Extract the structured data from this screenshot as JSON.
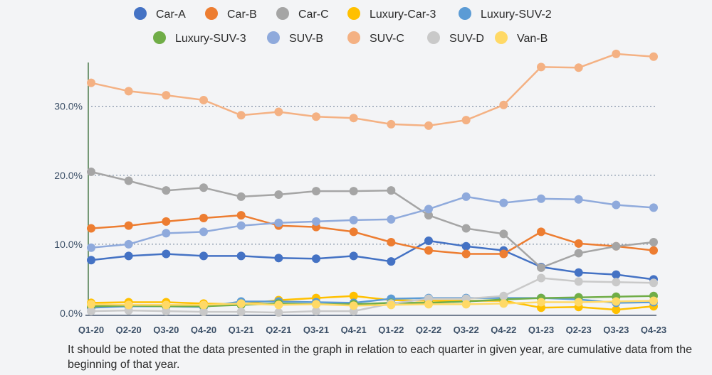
{
  "chart_data": {
    "type": "line",
    "title": "",
    "xlabel": "",
    "ylabel": "",
    "ylim": [
      0,
      0.38
    ],
    "y_ticks": [
      0,
      0.1,
      0.2,
      0.3
    ],
    "y_tick_labels": [
      "0.0%",
      "10.0%",
      "20.0%",
      "30.0%"
    ],
    "grid": "dotted horizontal at 10%, 20%, 30%",
    "legend_position": "top",
    "categories": [
      "Q1-20",
      "Q2-20",
      "Q3-20",
      "Q4-20",
      "Q1-21",
      "Q2-21",
      "Q3-21",
      "Q4-21",
      "Q1-22",
      "Q2-22",
      "Q3-22",
      "Q4-22",
      "Q1-23",
      "Q2-23",
      "Q3-23",
      "Q4-23"
    ],
    "series": [
      {
        "name": "Car-A",
        "color": "#4472c4",
        "values": [
          0.077,
          0.083,
          0.086,
          0.083,
          0.083,
          0.08,
          0.079,
          0.083,
          0.075,
          0.105,
          0.097,
          0.091,
          0.067,
          0.059,
          0.056,
          0.049
        ]
      },
      {
        "name": "Car-B",
        "color": "#ed7d31",
        "values": [
          0.123,
          0.127,
          0.133,
          0.138,
          0.142,
          0.127,
          0.125,
          0.118,
          0.103,
          0.091,
          0.086,
          0.086,
          0.118,
          0.101,
          0.097,
          0.091
        ]
      },
      {
        "name": "Car-C",
        "color": "#a5a5a5",
        "values": [
          0.205,
          0.192,
          0.178,
          0.182,
          0.169,
          0.172,
          0.177,
          0.177,
          0.178,
          0.142,
          0.123,
          0.115,
          0.066,
          0.087,
          0.097,
          0.103
        ]
      },
      {
        "name": "Luxury-Car-3",
        "color": "#ffc000",
        "values": [
          0.015,
          0.016,
          0.016,
          0.014,
          0.013,
          0.019,
          0.022,
          0.025,
          0.019,
          0.018,
          0.018,
          0.018,
          0.008,
          0.009,
          0.005,
          0.01
        ]
      },
      {
        "name": "Luxury-SUV-2",
        "color": "#5b9bd5",
        "values": [
          0.008,
          0.01,
          0.01,
          0.009,
          0.017,
          0.017,
          0.016,
          0.015,
          0.021,
          0.022,
          0.022,
          0.022,
          0.022,
          0.02,
          0.015,
          0.016
        ]
      },
      {
        "name": "Luxury-SUV-3",
        "color": "#70ad47",
        "values": [
          0.01,
          0.011,
          0.01,
          0.01,
          0.012,
          0.014,
          0.013,
          0.013,
          0.015,
          0.015,
          0.017,
          0.02,
          0.022,
          0.023,
          0.024,
          0.025
        ]
      },
      {
        "name": "SUV-B",
        "color": "#8faadc",
        "values": [
          0.095,
          0.1,
          0.116,
          0.118,
          0.127,
          0.131,
          0.133,
          0.135,
          0.136,
          0.151,
          0.169,
          0.16,
          0.166,
          0.165,
          0.157,
          0.153
        ]
      },
      {
        "name": "SUV-C",
        "color": "#f4b183",
        "values": [
          0.334,
          0.322,
          0.316,
          0.309,
          0.287,
          0.292,
          0.285,
          0.283,
          0.274,
          0.272,
          0.28,
          0.302,
          0.357,
          0.356,
          0.376,
          0.372
        ]
      },
      {
        "name": "SUV-D",
        "color": "#c9c9c9",
        "values": [
          0.003,
          0.004,
          0.003,
          0.002,
          0.002,
          0.001,
          0.003,
          0.003,
          0.014,
          0.021,
          0.021,
          0.025,
          0.051,
          0.046,
          0.045,
          0.044
        ]
      },
      {
        "name": "Van-B",
        "color": "#ffd966",
        "values": [
          0.013,
          0.012,
          0.012,
          0.012,
          0.014,
          0.012,
          0.013,
          0.011,
          0.012,
          0.013,
          0.013,
          0.014,
          0.016,
          0.016,
          0.017,
          0.018
        ]
      }
    ]
  },
  "footnote": "It should be noted that the data presented in the graph in relation to each quarter in given year, are cumulative data from the beginning of that year."
}
